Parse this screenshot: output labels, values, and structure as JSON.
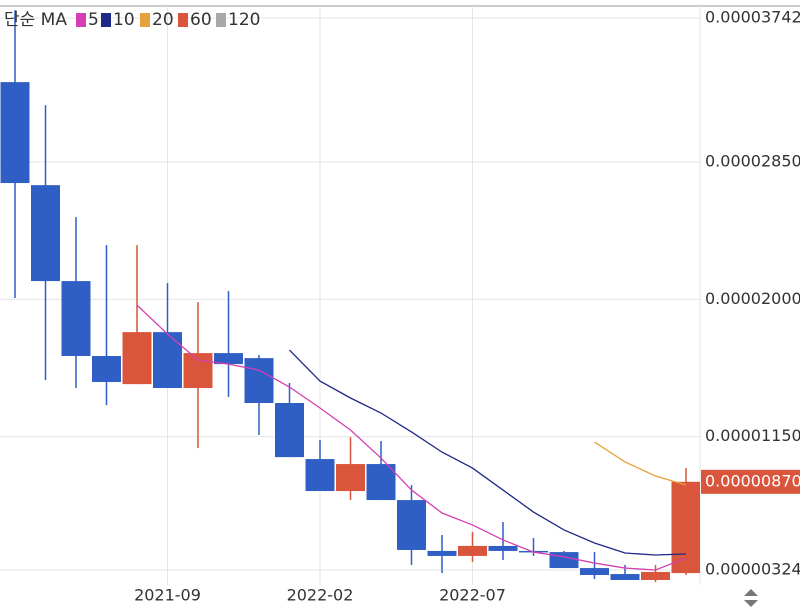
{
  "chart_data": {
    "type": "candlestick",
    "legend_title": "단순 MA",
    "categories": [
      null,
      null,
      null,
      null,
      null,
      "2021-09",
      null,
      null,
      null,
      null,
      "2022-02",
      null,
      null,
      null,
      null,
      "2022-07",
      null,
      null,
      null,
      null,
      null,
      null,
      null
    ],
    "open": [
      3.345e-05,
      2.707e-05,
      2.113e-05,
      1.649e-05,
      1.475e-05,
      1.797e-05,
      1.451e-05,
      1.667e-05,
      1.636e-05,
      1.358e-05,
      1.011e-05,
      8.13e-06,
      9.8e-06,
      7.57e-06,
      4.42e-06,
      4.11e-06,
      4.73e-06,
      4.42e-06,
      4.35e-06,
      3.36e-06,
      2.99e-06,
      2.62e-06,
      3.05e-06
    ],
    "high": [
      3.79e-05,
      3.202e-05,
      2.509e-05,
      2.336e-05,
      2.336e-05,
      2.101e-05,
      1.983e-05,
      2.051e-05,
      1.655e-05,
      1.482e-05,
      1.129e-05,
      1.147e-05,
      1.123e-05,
      8.5e-06,
      5.41e-06,
      5.59e-06,
      6.21e-06,
      5.22e-06,
      4.42e-06,
      4.35e-06,
      3.55e-06,
      3.55e-06,
      9.55e-06
    ],
    "low": [
      2.008e-05,
      1.5e-05,
      1.451e-05,
      1.345e-05,
      1.475e-05,
      1.451e-05,
      1.079e-05,
      1.395e-05,
      1.16e-05,
      1.023e-05,
      8.13e-06,
      7.57e-06,
      7.57e-06,
      3.55e-06,
      3.05e-06,
      3.74e-06,
      3.86e-06,
      4.11e-06,
      3.36e-06,
      2.68e-06,
      2.62e-06,
      2.5e-06,
      2.93e-06
    ],
    "close": [
      2.72e-05,
      2.113e-05,
      1.649e-05,
      1.488e-05,
      1.797e-05,
      1.451e-05,
      1.667e-05,
      1.599e-05,
      1.358e-05,
      1.023e-05,
      8.13e-06,
      9.8e-06,
      7.57e-06,
      4.48e-06,
      4.11e-06,
      4.73e-06,
      4.42e-06,
      4.35e-06,
      3.36e-06,
      2.93e-06,
      2.62e-06,
      3.12e-06,
      8.7e-06
    ],
    "up_color": "#d9553c",
    "down_color": "#2f5fc4",
    "series": [
      {
        "name": "5",
        "color": "#d43fb4",
        "values": [
          null,
          null,
          null,
          null,
          1.964e-05,
          1.785e-05,
          1.624e-05,
          1.599e-05,
          1.562e-05,
          1.457e-05,
          1.327e-05,
          1.191e-05,
          1.017e-05,
          8.19e-06,
          6.77e-06,
          6.03e-06,
          5.1e-06,
          4.35e-06,
          4.05e-06,
          3.67e-06,
          3.36e-06,
          3.24e-06,
          3.98e-06
        ]
      },
      {
        "name": "10",
        "color": "#1f2a86",
        "values": [
          null,
          null,
          null,
          null,
          null,
          null,
          null,
          null,
          null,
          1.686e-05,
          1.494e-05,
          1.389e-05,
          1.296e-05,
          1.179e-05,
          1.054e-05,
          9.55e-06,
          8.19e-06,
          6.83e-06,
          5.72e-06,
          4.91e-06,
          4.29e-06,
          4.17e-06,
          4.23e-06
        ]
      },
      {
        "name": "20",
        "color": "#e5a23c",
        "values": [
          null,
          null,
          null,
          null,
          null,
          null,
          null,
          null,
          null,
          null,
          null,
          null,
          null,
          null,
          null,
          null,
          null,
          null,
          null,
          1.116e-05,
          9.93e-06,
          9.06e-06,
          8.5e-06
        ]
      },
      {
        "name": "60",
        "color": "#d9553c",
        "values": [
          null,
          null,
          null,
          null,
          null,
          null,
          null,
          null,
          null,
          null,
          null,
          null,
          null,
          null,
          null,
          null,
          null,
          null,
          null,
          null,
          null,
          null,
          null
        ]
      },
      {
        "name": "120",
        "color": "#a8a8a8",
        "values": [
          null,
          null,
          null,
          null,
          null,
          null,
          null,
          null,
          null,
          null,
          null,
          null,
          null,
          null,
          null,
          null,
          null,
          null,
          null,
          null,
          null,
          null,
          null
        ]
      }
    ],
    "ylim": [
      3.24e-06,
      3.742e-05
    ],
    "yticks": [
      {
        "value": 3.24e-06,
        "label": "0.00000324"
      },
      {
        "value": 1.15e-05,
        "label": "0.00001150"
      },
      {
        "value": 2e-05,
        "label": "0.00002000"
      },
      {
        "value": 2.85e-05,
        "label": "0.00002850"
      },
      {
        "value": 3.742e-05,
        "label": "0.00003742"
      }
    ],
    "current_price": {
      "value": 8.7e-06,
      "label": "0.00000870"
    },
    "grid": true
  }
}
